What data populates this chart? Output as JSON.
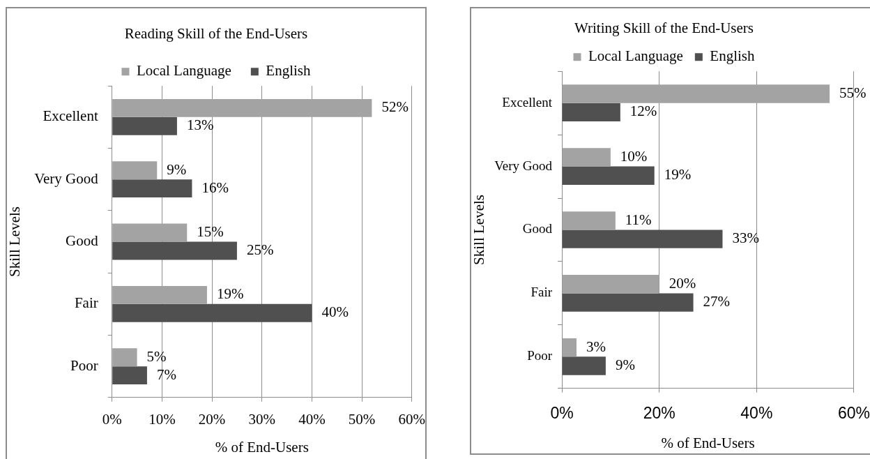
{
  "chart_data": [
    {
      "type": "bar",
      "orientation": "horizontal",
      "title": "Reading Skill of the End-Users",
      "xlabel": "% of End-Users",
      "ylabel": "Skill Levels",
      "categories": [
        "Excellent",
        "Very Good",
        "Good",
        "Fair",
        "Poor"
      ],
      "series": [
        {
          "name": "Local Language",
          "color": "#a3a3a3",
          "values": [
            52,
            9,
            15,
            19,
            5
          ],
          "value_labels": [
            "52%",
            "9%",
            "15%",
            "19%",
            "5%"
          ]
        },
        {
          "name": "English",
          "color": "#505050",
          "values": [
            13,
            16,
            25,
            40,
            7
          ],
          "value_labels": [
            "13%",
            "16%",
            "25%",
            "40%",
            "7%"
          ]
        }
      ],
      "xlim": [
        0,
        60
      ],
      "xticks": [
        {
          "value": 0,
          "label": "0%"
        },
        {
          "value": 10,
          "label": "10%"
        },
        {
          "value": 20,
          "label": "20%"
        },
        {
          "value": 30,
          "label": "30%"
        },
        {
          "value": 40,
          "label": "40%"
        },
        {
          "value": 50,
          "label": "50%"
        },
        {
          "value": 60,
          "label": "60%"
        }
      ],
      "grid": "x",
      "legend": "top"
    },
    {
      "type": "bar",
      "orientation": "horizontal",
      "title": "Writing Skill of the End-Users",
      "xlabel": "% of End-Users",
      "ylabel": "Skill Levels",
      "categories": [
        "Excellent",
        "Very Good",
        "Good",
        "Fair",
        "Poor"
      ],
      "series": [
        {
          "name": "Local Language",
          "color": "#a3a3a3",
          "values": [
            55,
            10,
            11,
            20,
            3
          ],
          "value_labels": [
            "55%",
            "10%",
            "11%",
            "20%",
            "3%"
          ]
        },
        {
          "name": "English",
          "color": "#505050",
          "values": [
            12,
            19,
            33,
            27,
            9
          ],
          "value_labels": [
            "12%",
            "19%",
            "33%",
            "27%",
            "9%"
          ]
        }
      ],
      "xlim": [
        0,
        60
      ],
      "xticks": [
        {
          "value": 0,
          "label": "0%"
        },
        {
          "value": 20,
          "label": "20%"
        },
        {
          "value": 40,
          "label": "40%"
        },
        {
          "value": 60,
          "label": "60%"
        }
      ],
      "grid": "x",
      "legend": "top"
    }
  ]
}
